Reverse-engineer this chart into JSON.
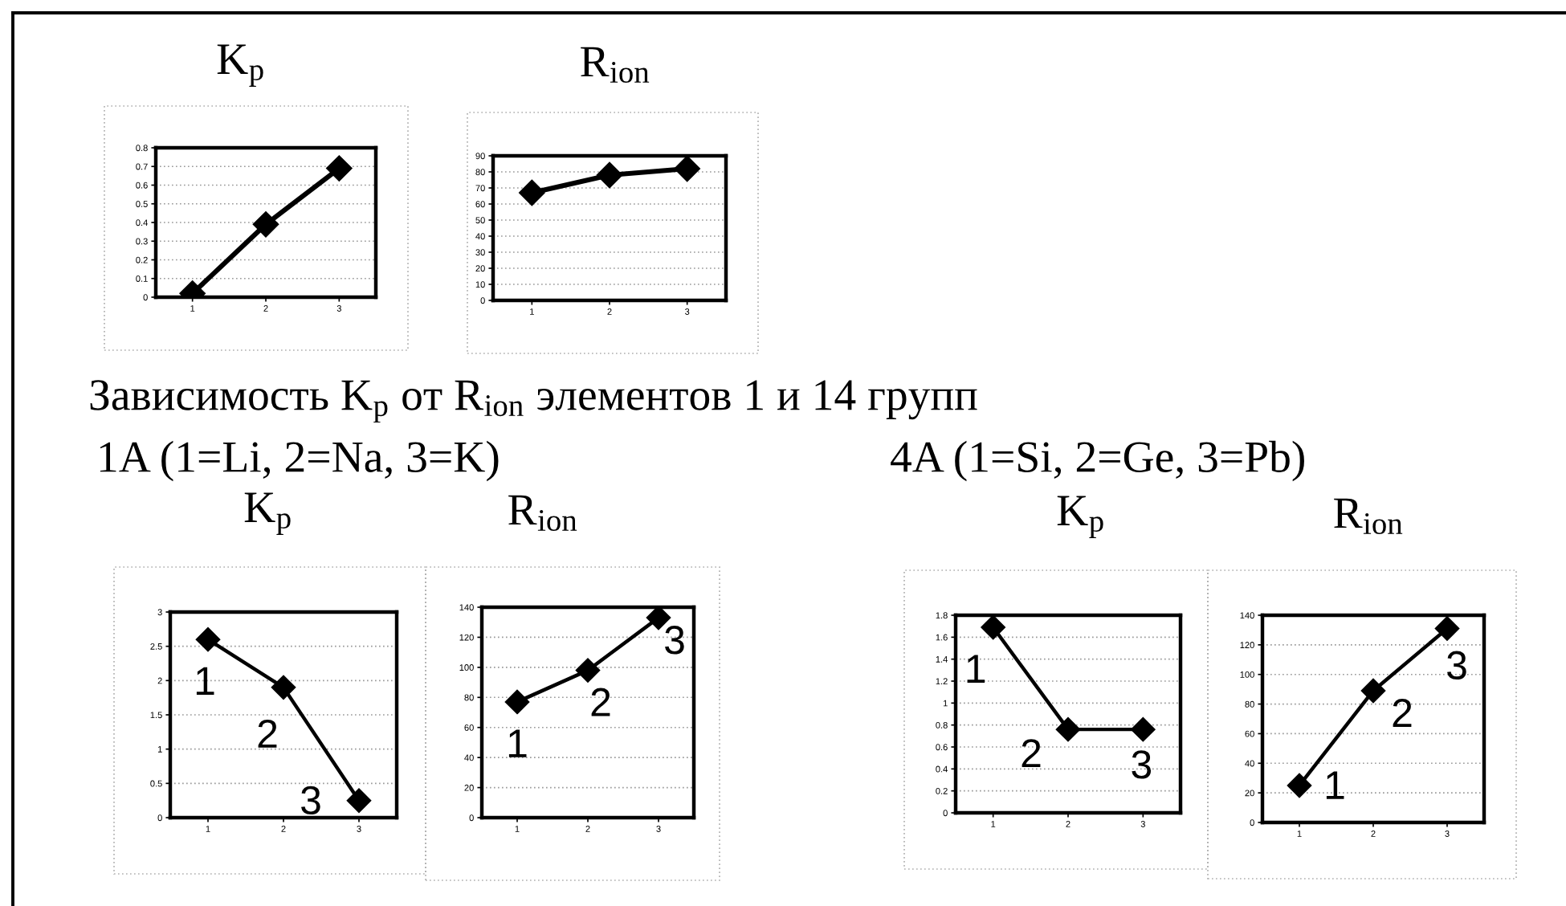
{
  "chart_data": [
    {
      "type": "line",
      "title": "K$_{p}$",
      "categories": [
        "1",
        "2",
        "3"
      ],
      "values": [
        0.02,
        0.39,
        0.69
      ],
      "color": "#000000",
      "marker": "diamond",
      "line_style": "solid",
      "ylim": [
        0,
        0.8
      ],
      "yticks": [
        0,
        0.1,
        0.2,
        0.3,
        0.4,
        0.5,
        0.6,
        0.7,
        0.8
      ],
      "grid": "y"
    },
    {
      "type": "line",
      "title": "R$_{ion}$",
      "categories": [
        "1",
        "2",
        "3"
      ],
      "values": [
        67,
        78,
        82
      ],
      "color": "#000000",
      "marker": "diamond",
      "line_style": "solid",
      "ylim": [
        0,
        90
      ],
      "yticks": [
        0,
        10,
        20,
        30,
        40,
        50,
        60,
        70,
        80,
        90
      ],
      "grid": "y"
    },
    {
      "type": "line",
      "title": "K$_{p}$",
      "categories": [
        "1",
        "2",
        "3"
      ],
      "values": [
        2.6,
        1.9,
        0.25
      ],
      "color": "#000000",
      "marker": "diamond",
      "line_style": "solid",
      "ylim": [
        0,
        3
      ],
      "yticks": [
        0,
        0.5,
        1,
        1.5,
        2,
        2.5,
        3
      ],
      "grid": "y",
      "annotations": [
        "Зависимость K$_{p}$ от R$_{ion}$ элементов 1 и 14 групп",
        "1A (1=Li, 2=Na, 3=K)",
        {
          "text": "1",
          "x": "1",
          "y": 2.6
        },
        {
          "text": "2",
          "x": "2",
          "y": 1.9
        },
        {
          "text": "3",
          "x": "3",
          "y": 0.25
        }
      ]
    },
    {
      "type": "line",
      "title": "R$_{ion}$",
      "categories": [
        "1",
        "2",
        "3"
      ],
      "values": [
        77,
        98,
        133
      ],
      "color": "#000000",
      "marker": "diamond",
      "line_style": "solid",
      "ylim": [
        0,
        140
      ],
      "yticks": [
        0,
        20,
        40,
        60,
        80,
        100,
        120,
        140
      ],
      "grid": "y",
      "annotations": [
        {
          "text": "1",
          "x": "1",
          "y": 77
        },
        {
          "text": "2",
          "x": "2",
          "y": 98
        },
        {
          "text": "3",
          "x": "3",
          "y": 133
        }
      ]
    },
    {
      "type": "line",
      "title": "K$_{p}$",
      "categories": [
        "1",
        "2",
        "3"
      ],
      "values": [
        1.69,
        0.76,
        0.76
      ],
      "color": "#000000",
      "marker": "diamond",
      "line_style": "solid",
      "ylim": [
        0,
        1.8
      ],
      "yticks": [
        0,
        0.2,
        0.4,
        0.6,
        0.8,
        1,
        1.2,
        1.4,
        1.6,
        1.8
      ],
      "grid": "y",
      "annotations": [
        "4A (1=Si, 2=Ge, 3=Pb)",
        {
          "text": "1",
          "x": "1",
          "y": 1.69
        },
        {
          "text": "2",
          "x": "2",
          "y": 0.76
        },
        {
          "text": "3",
          "x": "3",
          "y": 0.76
        }
      ]
    },
    {
      "type": "line",
      "title": "R$_{ion}$",
      "categories": [
        "1",
        "2",
        "3"
      ],
      "values": [
        25,
        89,
        131
      ],
      "color": "#000000",
      "marker": "diamond",
      "line_style": "solid",
      "ylim": [
        0,
        140
      ],
      "yticks": [
        0,
        20,
        40,
        60,
        80,
        100,
        120,
        140
      ],
      "grid": "y",
      "annotations": [
        {
          "text": "1",
          "x": "1",
          "y": 25
        },
        {
          "text": "2",
          "x": "2",
          "y": 89
        },
        {
          "text": "3",
          "x": "3",
          "y": 131
        }
      ]
    }
  ]
}
